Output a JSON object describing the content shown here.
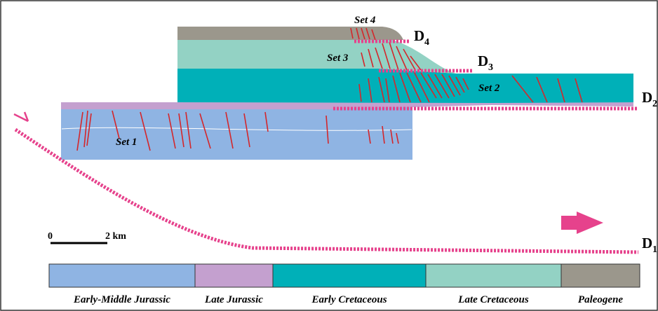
{
  "set_labels": [
    "Set 4",
    "Set 3",
    "Set 2",
    "Set 1"
  ],
  "detachments": [
    {
      "main": "D",
      "sub": "4"
    },
    {
      "main": "D",
      "sub": "3"
    },
    {
      "main": "D",
      "sub": "2"
    },
    {
      "main": "D",
      "sub": "1"
    }
  ],
  "scale_bar": {
    "start": "0",
    "end": "2 km"
  },
  "legend": [
    {
      "name": "Early-Middle Jurassic",
      "color": "#8fb4e3"
    },
    {
      "name": "Late Jurassic",
      "color": "#c4a0cf"
    },
    {
      "name": "Early Cretaceous",
      "color": "#00b0b8"
    },
    {
      "name": "Late Cretaceous",
      "color": "#93d2c4"
    },
    {
      "name": "Paleogene",
      "color": "#9b978c"
    }
  ]
}
